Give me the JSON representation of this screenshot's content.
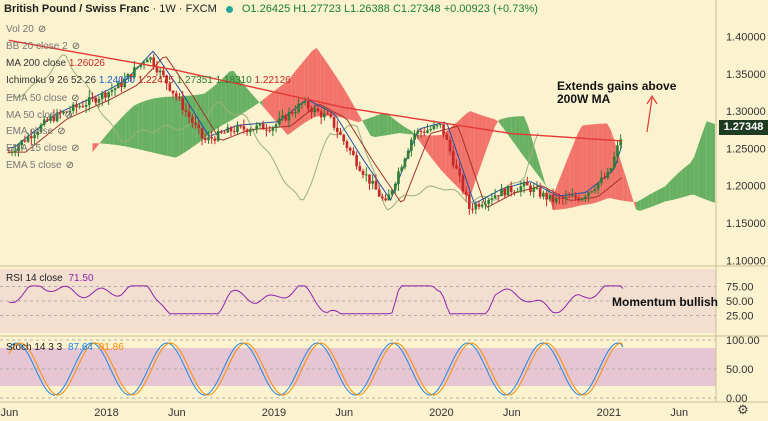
{
  "header": {
    "symbol": "British Pound / Swiss Franc",
    "separator1": "·",
    "interval": "1W",
    "separator2": "·",
    "exchange": "FXCM",
    "ohlc_text": "O1.26425  H1.27723  L1.26388  C1.27348  +0.00923 (+0.73%)"
  },
  "indicators": {
    "vol": "Vol 20",
    "bb": "BB 20 close 2",
    "ma200_label": "MA 200 close",
    "ma200_value": "1.26026",
    "ichimoku_label": "Ichimoku 9 26 52 26",
    "ichimoku_values": [
      "1.24060",
      "1.22475",
      "1.27351",
      "1.18310",
      "1.22126"
    ],
    "ema_labels": [
      "EMA 50 close",
      "MA 50 close",
      "EMA close",
      "EMA 15 close",
      "EMA 5 close"
    ]
  },
  "annotations": {
    "extends_line1": "Extends gains above",
    "extends_line2": "200W MA",
    "momentum": "Momentum bullish"
  },
  "price_tag": "1.27348",
  "rsi": {
    "label": "RSI 14 close",
    "value": "71.50"
  },
  "stoch": {
    "label": "Stoch 14 3 3",
    "k": "87.64",
    "d": "91.86"
  },
  "colors": {
    "background": "#fbf2cf",
    "candle_up": "#2e7d32",
    "candle_down": "#c62828",
    "ma200": "#e53935",
    "kumo_bull": "#43a047",
    "kumo_bear": "#ef5350",
    "rsi_line": "#8e24aa",
    "stoch_k": "#1e88e5",
    "stoch_d": "#fb8c00"
  },
  "chart_data": {
    "type": "candlestick",
    "title": "British Pound / Swiss Franc · 1W · FXCM",
    "price_axis": {
      "ticks": [
        "1.40000",
        "1.35000",
        "1.30000",
        "1.25000",
        "1.20000",
        "1.15000",
        "1.10000"
      ],
      "ylim": [
        1.095,
        1.425
      ]
    },
    "x_axis_labels": [
      "Jun",
      "2018",
      "Jun",
      "2019",
      "Jun",
      "2020",
      "Jun",
      "2021",
      "Jun"
    ],
    "price_path_weekly_close_approx": [
      [
        "2017-06",
        1.245
      ],
      [
        "2017-09",
        1.29
      ],
      [
        "2017-12",
        1.315
      ],
      [
        "2018-02",
        1.335
      ],
      [
        "2018-04",
        1.375
      ],
      [
        "2018-06",
        1.32
      ],
      [
        "2018-08",
        1.26
      ],
      [
        "2018-10",
        1.275
      ],
      [
        "2019-01",
        1.28
      ],
      [
        "2019-03",
        1.31
      ],
      [
        "2019-05",
        1.29
      ],
      [
        "2019-07",
        1.23
      ],
      [
        "2019-09",
        1.175
      ],
      [
        "2019-11",
        1.27
      ],
      [
        "2020-01",
        1.28
      ],
      [
        "2020-03",
        1.17
      ],
      [
        "2020-05",
        1.19
      ],
      [
        "2020-07",
        1.2
      ],
      [
        "2020-09",
        1.18
      ],
      [
        "2020-11",
        1.185
      ],
      [
        "2021-01",
        1.215
      ],
      [
        "2021-02",
        1.273
      ]
    ],
    "ma200_path_approx": [
      [
        "2017-06",
        1.395
      ],
      [
        "2018-06",
        1.355
      ],
      [
        "2019-06",
        1.305
      ],
      [
        "2020-06",
        1.27
      ],
      [
        "2021-02",
        1.26
      ]
    ],
    "rsi": {
      "levels": [
        "75.00",
        "50.00",
        "25.00"
      ],
      "last": 71.5
    },
    "stoch": {
      "levels": [
        "100.00",
        "50.00",
        "0.00"
      ],
      "k_last": 87.64,
      "d_last": 91.86
    }
  }
}
